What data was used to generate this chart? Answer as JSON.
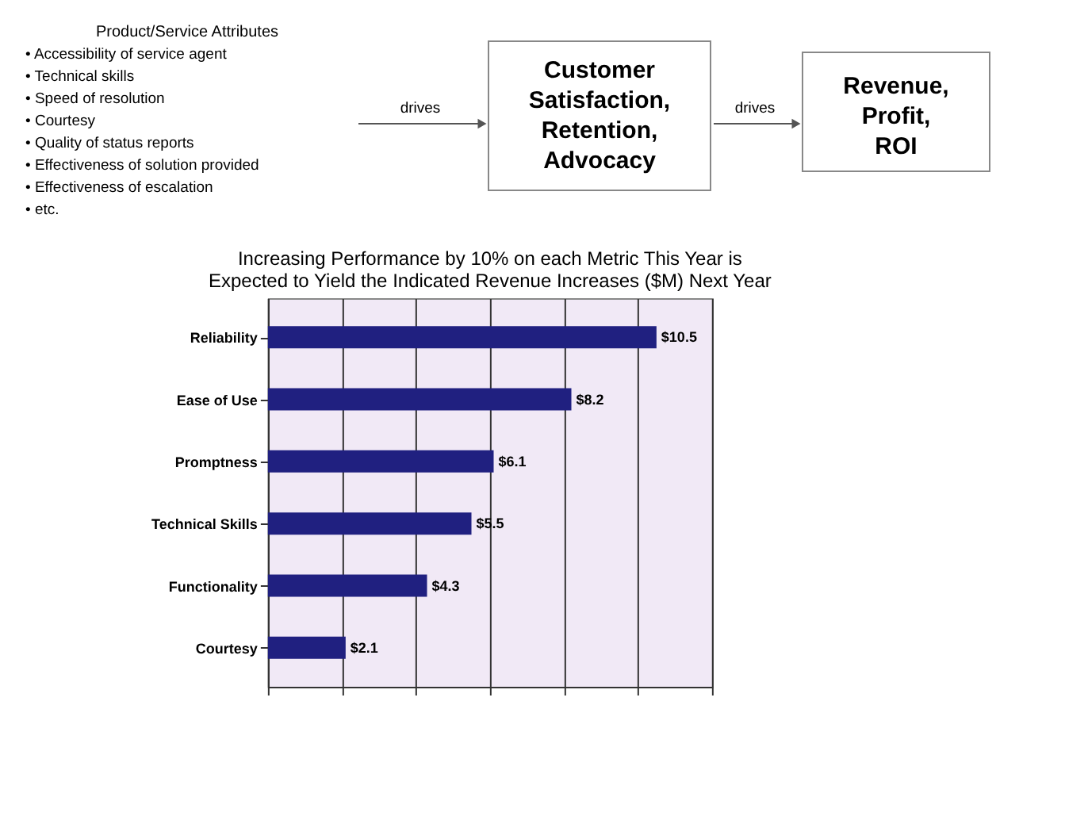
{
  "chart_data": [
    {
      "type": "other",
      "annotations": [
        "Product/Service Attributes",
        "• Accessibility of service agent",
        "• Technical skills",
        "• Speed of resolution",
        "• Courtesy",
        "• Quality of status reports",
        "• Effectiveness of solution provided",
        "• Effectiveness of escalation",
        "• etc.",
        "drives",
        "Customer",
        "Satisfaction,",
        "Retention,",
        "Advocacy",
        "drives",
        "Revenue,",
        "Profit,",
        "ROI"
      ]
    },
    {
      "type": "bar",
      "orientation": "horizontal",
      "title": [
        "Increasing Performance by 10% on each Metric This Year is",
        "Expected to Yield the Indicated Revenue Increases ($M) Next Year"
      ],
      "categories": [
        "Reliability",
        "Ease of Use",
        "Promptness",
        "Technical Skills",
        "Functionality",
        "Courtesy"
      ],
      "values": [
        10.5,
        8.2,
        6.1,
        5.5,
        4.3,
        2.1
      ],
      "value_labels": [
        "$10.5",
        "$8.2",
        "$6.1",
        "$5.5",
        "$4.3",
        "$2.1"
      ],
      "color": "#202080",
      "xlim": [
        0,
        12
      ],
      "xticks": [
        {
          "value": 0,
          "label": null
        },
        {
          "value": 2,
          "label": null
        },
        {
          "value": 4,
          "label": null
        },
        {
          "value": 6,
          "label": null
        },
        {
          "value": 8,
          "label": null
        },
        {
          "value": 10,
          "label": null
        },
        {
          "value": 12,
          "label": null
        }
      ],
      "grid": "x",
      "tick_labels": "y"
    }
  ]
}
